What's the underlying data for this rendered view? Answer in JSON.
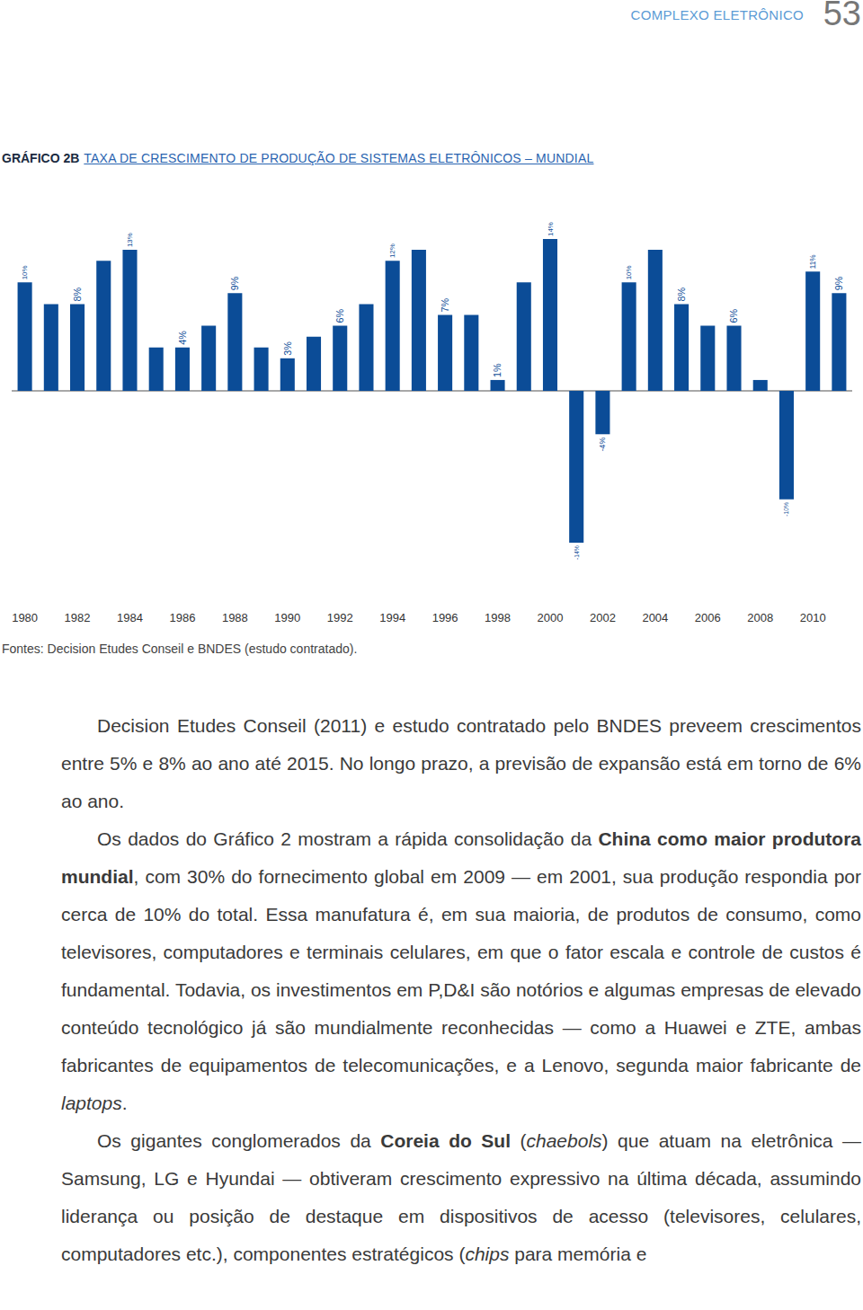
{
  "header": {
    "section": "COMPLEXO ELETRÔNICO",
    "page": "53"
  },
  "chart_label": "GRÁFICO 2B",
  "chart_data": {
    "type": "bar",
    "title": "TAXA DE CRESCIMENTO DE PRODUÇÃO DE SISTEMAS ELETRÔNICOS – MUNDIAL",
    "categories": [
      "1980",
      null,
      "1982",
      null,
      "1984",
      null,
      "1986",
      null,
      "1988",
      null,
      "1990",
      null,
      "1992",
      null,
      "1994",
      null,
      "1996",
      null,
      "1998",
      null,
      "2000",
      null,
      "2002",
      null,
      "2004",
      null,
      "2006",
      null,
      "2008",
      null,
      "2010",
      null
    ],
    "values": [
      10,
      8,
      8,
      12,
      13,
      4,
      4,
      6,
      9,
      4,
      3,
      5,
      6,
      8,
      12,
      13,
      7,
      7,
      1,
      10,
      14,
      -14,
      -4,
      10,
      13,
      8,
      6,
      6,
      1,
      -10,
      11,
      9
    ],
    "value_labels": [
      "10%",
      null,
      "8%",
      null,
      "13%",
      null,
      "4%",
      null,
      "9%",
      null,
      "3%",
      null,
      "6%",
      null,
      "12%",
      null,
      "7%",
      null,
      "1%",
      null,
      "14%",
      "-14%",
      "-4%",
      "10%",
      null,
      "8%",
      null,
      "6%",
      null,
      "-10%",
      "11%",
      "9%"
    ],
    "data_labels": true,
    "color": "#0b4c97",
    "ylim": [
      -14,
      14
    ],
    "tick_labels": "x",
    "grid": false
  },
  "source": "Fontes: Decision Etudes Conseil e BNDES (estudo contratado).",
  "paragraphs": [
    [
      {
        "text": "Decision Etudes Conseil (2011) e estudo contratado pelo BNDES preveem crescimentos entre 5% e 8% ao ano até 2015. No longo prazo, a previsão de expansão está em torno de 6% ao ano.",
        "style": "normal"
      }
    ],
    [
      {
        "text": "Os dados do Gráfico 2 mostram a rápida consolidação da ",
        "style": "normal"
      },
      {
        "text": "China como maior produtora mundial",
        "style": "bold"
      },
      {
        "text": ", com 30% do fornecimento global em 2009 — em 2001, sua produção respondia por cerca de 10% do total. Essa manufatura é, em sua maioria, de produtos de consumo, como televisores, computadores e terminais celulares, em que o fator escala e controle de custos é fundamental. Todavia, os investimentos em P,D&I são notórios e algumas empresas de elevado conteúdo tecnológico já são mundialmente reconhecidas — como a Huawei e ZTE, ambas fabricantes de equipamentos de telecomunicações, e a Lenovo, segunda maior fabricante de ",
        "style": "normal"
      },
      {
        "text": "laptops",
        "style": "italic"
      },
      {
        "text": ".",
        "style": "normal"
      }
    ],
    [
      {
        "text": "Os gigantes conglomerados da ",
        "style": "normal"
      },
      {
        "text": "Coreia do Sul",
        "style": "bold"
      },
      {
        "text": " (",
        "style": "normal"
      },
      {
        "text": "chaebols",
        "style": "italic"
      },
      {
        "text": ") que atuam na eletrônica — Samsung, LG e Hyundai — obtiveram crescimento expressivo na última década, assumindo liderança ou posição de destaque em dispositivos de acesso (televisores, celulares, computadores etc.), componentes estratégicos (",
        "style": "normal"
      },
      {
        "text": "chips",
        "style": "italic"
      },
      {
        "text": " para memória e",
        "style": "normal"
      }
    ]
  ]
}
